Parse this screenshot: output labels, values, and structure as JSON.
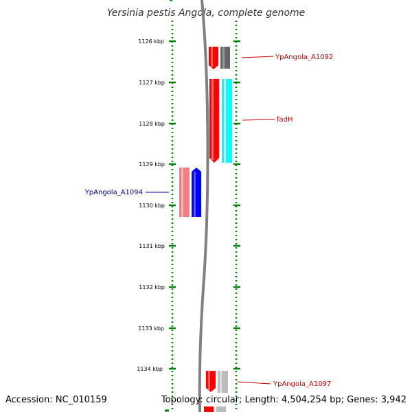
{
  "title": "Yersinia pestis Angola, complete genome",
  "footer": {
    "accession": "Accession: NC_010159",
    "summary": "Topology: circular; Length: 4,504,254 bp; Genes: 3,942"
  },
  "colors": {
    "tick_green": "#008000",
    "backbone_gray": "#808080",
    "label_red": "#cc0000",
    "label_blue": "#0000aa",
    "cds_red": "#ff0000",
    "gray_gene": "#666666",
    "cyan_gene": "#00ffff",
    "blue_gene": "#0000ff",
    "pink_gene": "#f08080",
    "light_gray_gene": "#bbbbbb"
  },
  "axis": {
    "unit": "kbp",
    "ticks": [
      "1126 kbp",
      "1127 kbp",
      "1128 kbp",
      "1129 kbp",
      "1130 kbp",
      "1131 kbp",
      "1132 kbp",
      "1133 kbp",
      "1134 kbp"
    ]
  },
  "genes": [
    {
      "label": "YpAngola_A1092",
      "strand": "forward",
      "track_color": "red"
    },
    {
      "label": "fadH",
      "strand": "forward",
      "track_color": "red"
    },
    {
      "label": "YpAngola_A1094",
      "strand": "reverse",
      "track_color": "blue"
    },
    {
      "label": "YpAngola_A1097",
      "strand": "forward",
      "track_color": "red"
    }
  ]
}
